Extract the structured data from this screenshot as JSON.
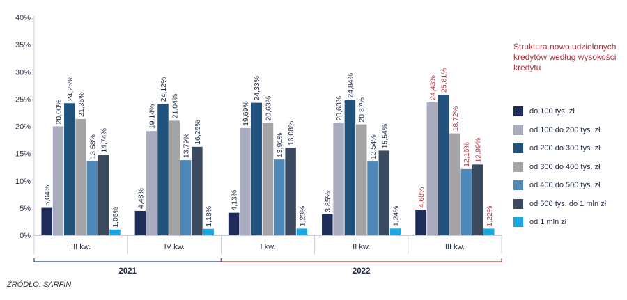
{
  "chart_data": {
    "type": "bar",
    "title": "Struktura nowo udzielonych kredytów według wysokości kredytu",
    "categories": [
      "III kw.",
      "IV kw.",
      "I kw.",
      "II kw.",
      "III kw."
    ],
    "years": [
      {
        "label": "2021",
        "from": 0,
        "to": 1,
        "color": "#2e3f73"
      },
      {
        "label": "2022",
        "from": 2,
        "to": 4,
        "color": "#b23a44"
      }
    ],
    "highlight_color": "#b23a44",
    "highlight_category_index": 4,
    "ylim": [
      0,
      40
    ],
    "yticks": [
      0,
      5,
      10,
      15,
      20,
      25,
      30,
      35,
      40
    ],
    "ytick_labels": [
      "0%",
      "5%",
      "10%",
      "15%",
      "20%",
      "25%",
      "30%",
      "35%",
      "40%"
    ],
    "grid": false,
    "legend_position": "right",
    "series": [
      {
        "name": "do 100 tys. zł",
        "color": "#1e2c5a",
        "values": [
          5.04,
          4.48,
          4.13,
          3.85,
          4.68
        ],
        "labels": [
          "5,04%",
          "4,48%",
          "4,13%",
          "3,85%",
          "4,68%"
        ]
      },
      {
        "name": "od 100 do 200 tys. zł",
        "color": "#a9abbf",
        "values": [
          20.0,
          19.14,
          19.69,
          20.63,
          24.43
        ],
        "labels": [
          "20,00%",
          "19,14%",
          "19,69%",
          "20,63%",
          "24,43%"
        ]
      },
      {
        "name": "od 200 do 300 tys. zł",
        "color": "#21527e",
        "values": [
          24.25,
          24.12,
          24.33,
          24.84,
          25.81
        ],
        "labels": [
          "24,25%",
          "24,12%",
          "24,33%",
          "24,84%",
          "25,81%"
        ]
      },
      {
        "name": "od 300 do 400 tys. zł",
        "color": "#a4a4a6",
        "values": [
          21.35,
          21.04,
          20.63,
          20.37,
          18.72
        ],
        "labels": [
          "21,35%",
          "21,04%",
          "20,63%",
          "20,37%",
          "18,72%"
        ]
      },
      {
        "name": "od 400 do 500 tys. zł",
        "color": "#4e88b8",
        "values": [
          13.58,
          13.79,
          13.91,
          13.54,
          12.16
        ],
        "labels": [
          "13,58%",
          "13,79%",
          "13,91%",
          "13,54%",
          "12,16%"
        ]
      },
      {
        "name": "od 500 tys. do 1 mln zł",
        "color": "#3b4a5e",
        "values": [
          14.74,
          16.25,
          16.08,
          15.54,
          12.99
        ],
        "labels": [
          "14,74%",
          "16,25%",
          "16,08%",
          "15,54%",
          "12,99%"
        ]
      },
      {
        "name": "od 1 mln zł",
        "color": "#1aa6e0",
        "values": [
          1.05,
          1.18,
          1.23,
          1.24,
          1.22
        ],
        "labels": [
          "1,05%",
          "1,18%",
          "1,23%",
          "1,24%",
          "1,22%"
        ]
      }
    ]
  },
  "source": "ŹRÓDŁO: SARFIN"
}
